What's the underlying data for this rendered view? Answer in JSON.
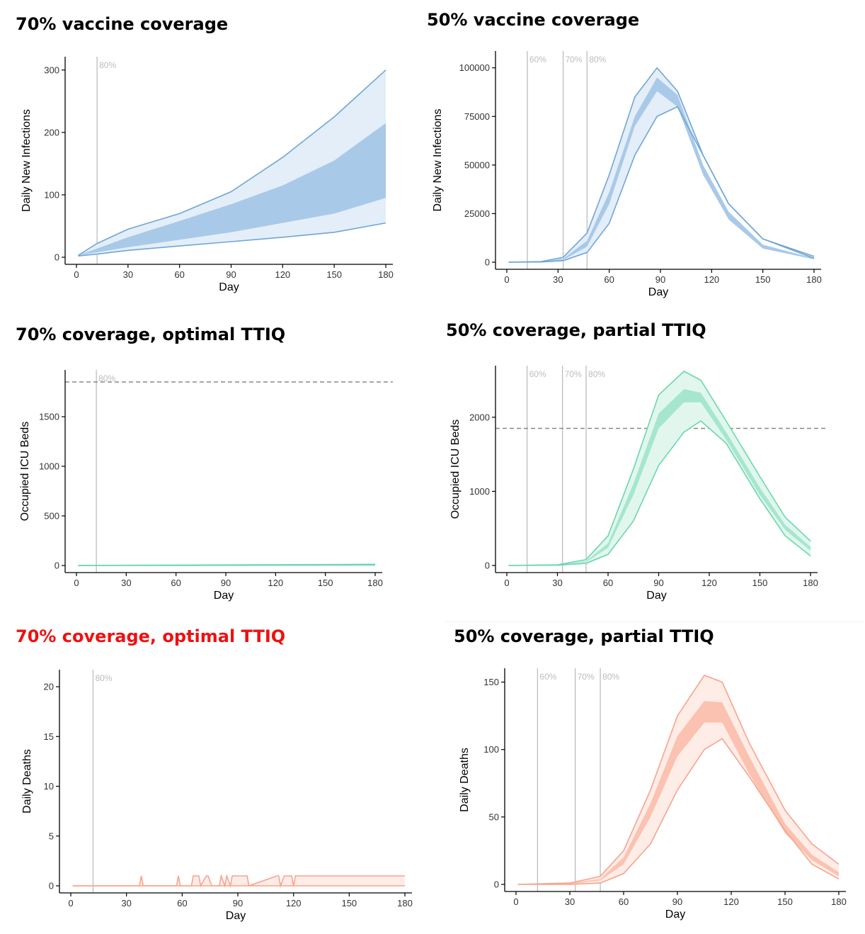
{
  "titles": [
    {
      "text": "70% vaccine coverage"
    },
    {
      "text": "50% vaccine coverage"
    },
    {
      "text": "70% coverage, optimal TTIQ"
    },
    {
      "text": "50% coverage, partial TTIQ"
    },
    {
      "text": "70% coverage, optimal TTIQ"
    },
    {
      "text": "50% coverage, partial TTIQ"
    }
  ],
  "colors": {
    "infections_line": "#6fa6d6",
    "infections_band": "#a9c9e8",
    "infections_outer": "#e4eef8",
    "icu_line": "#6ad6b0",
    "icu_band": "#a6e6cf",
    "icu_outer": "#e1f7ee",
    "deaths_line": "#f7a48e",
    "deaths_band": "#fbc2b1",
    "deaths_outer": "#feece6",
    "vline": "#bdbdbd",
    "threshold": "#888888",
    "axis": "#000000"
  },
  "chart_data": [
    {
      "type": "area",
      "title": "70% vaccine coverage",
      "xlabel": "Day",
      "ylabel": "Daily New Infections",
      "xlim": [
        0,
        180
      ],
      "ylim": [
        0,
        310
      ],
      "xticks": [
        0,
        30,
        60,
        90,
        120,
        150,
        180
      ],
      "yticks": [
        0,
        100,
        200,
        300
      ],
      "x": [
        1,
        12,
        30,
        60,
        90,
        120,
        150,
        180
      ],
      "series": [
        {
          "values": [
            3,
            22,
            45,
            70,
            105,
            160,
            225,
            300
          ]
        },
        {
          "values": [
            3,
            14,
            32,
            58,
            85,
            115,
            155,
            215
          ]
        },
        {
          "values": [
            3,
            8,
            16,
            28,
            40,
            55,
            70,
            95
          ]
        },
        {
          "values": [
            2,
            5,
            11,
            18,
            25,
            32,
            40,
            55
          ]
        }
      ],
      "vlines": [
        {
          "x": 12,
          "label": "80%"
        }
      ],
      "grid": false
    },
    {
      "type": "area",
      "title": "50% vaccine coverage",
      "xlabel": "Day",
      "ylabel": "Daily New Infections",
      "xlim": [
        0,
        180
      ],
      "ylim": [
        0,
        105000
      ],
      "xticks": [
        0,
        30,
        60,
        90,
        120,
        150,
        180
      ],
      "yticks": [
        0,
        25000,
        50000,
        75000,
        100000
      ],
      "x": [
        1,
        20,
        33,
        47,
        60,
        75,
        88,
        100,
        115,
        130,
        150,
        180
      ],
      "series": [
        {
          "values": [
            0,
            300,
            2500,
            15000,
            45000,
            85000,
            100000,
            88000,
            55000,
            30000,
            12000,
            3000
          ]
        },
        {
          "values": [
            0,
            200,
            1800,
            11000,
            36000,
            75000,
            95000,
            86000,
            50000,
            26000,
            9000,
            2000
          ]
        },
        {
          "values": [
            0,
            150,
            1200,
            8000,
            30000,
            70000,
            88000,
            80000,
            45000,
            22000,
            7000,
            1500
          ]
        },
        {
          "values": [
            0,
            100,
            800,
            5000,
            20000,
            55000,
            75000,
            80000,
            55000,
            30000,
            12000,
            2000
          ]
        }
      ],
      "vlines": [
        {
          "x": 12,
          "label": "60%"
        },
        {
          "x": 33,
          "label": "70%"
        },
        {
          "x": 47,
          "label": "80%"
        }
      ],
      "grid": false
    },
    {
      "type": "area",
      "title": "70% coverage, optimal TTIQ",
      "xlabel": "Day",
      "ylabel": "Occupied ICU Beds",
      "xlim": [
        0,
        180
      ],
      "ylim": [
        0,
        1900
      ],
      "xticks": [
        0,
        30,
        60,
        90,
        120,
        150,
        180
      ],
      "yticks": [
        0,
        500,
        1000,
        1500
      ],
      "x": [
        1,
        60,
        120,
        180
      ],
      "series": [
        {
          "values": [
            1,
            4,
            8,
            12
          ]
        },
        {
          "values": [
            0,
            3,
            6,
            9
          ]
        },
        {
          "values": [
            0,
            2,
            4,
            7
          ]
        },
        {
          "values": [
            0,
            1,
            3,
            5
          ]
        }
      ],
      "vlines": [
        {
          "x": 12,
          "label": "80%"
        }
      ],
      "threshold": 1850,
      "grid": false
    },
    {
      "type": "area",
      "title": "50% coverage, partial TTIQ",
      "xlabel": "Day",
      "ylabel": "Occupied ICU Beds",
      "xlim": [
        0,
        180
      ],
      "ylim": [
        0,
        2600
      ],
      "xticks": [
        0,
        30,
        60,
        90,
        120,
        150,
        180
      ],
      "yticks": [
        0,
        1000,
        2000
      ],
      "x": [
        1,
        30,
        47,
        60,
        75,
        90,
        105,
        115,
        130,
        150,
        165,
        180
      ],
      "series": [
        {
          "values": [
            0,
            10,
            80,
            400,
            1300,
            2300,
            2620,
            2500,
            1950,
            1200,
            650,
            330
          ]
        },
        {
          "values": [
            0,
            8,
            60,
            300,
            1100,
            2050,
            2380,
            2330,
            1800,
            1050,
            550,
            250
          ]
        },
        {
          "values": [
            0,
            6,
            45,
            240,
            950,
            1850,
            2200,
            2200,
            1700,
            950,
            480,
            200
          ]
        },
        {
          "values": [
            0,
            4,
            30,
            150,
            600,
            1350,
            1800,
            1950,
            1650,
            900,
            400,
            130
          ]
        }
      ],
      "vlines": [
        {
          "x": 12,
          "label": "60%"
        },
        {
          "x": 33,
          "label": "70%"
        },
        {
          "x": 47,
          "label": "80%"
        }
      ],
      "threshold": 1850,
      "grid": false
    },
    {
      "type": "area",
      "title": "70% coverage, optimal TTIQ",
      "xlabel": "Day",
      "ylabel": "Daily Deaths",
      "xlim": [
        0,
        180
      ],
      "ylim": [
        0,
        21
      ],
      "xticks": [
        0,
        30,
        60,
        90,
        120,
        150,
        180
      ],
      "yticks": [
        0,
        5,
        10,
        15,
        20
      ],
      "x": [
        1,
        37,
        38,
        39,
        57,
        58,
        59,
        65,
        66,
        69,
        70,
        73,
        74,
        76,
        80,
        81,
        83,
        84,
        86,
        87,
        95,
        96,
        111,
        112,
        113,
        115,
        119,
        120,
        121,
        122,
        180
      ],
      "series": [
        {
          "values": [
            0,
            0,
            1,
            0,
            0,
            1,
            0,
            0,
            1,
            1,
            0,
            1,
            1,
            0,
            0,
            1,
            0,
            1,
            0,
            1,
            1,
            0,
            1,
            1,
            0,
            1,
            1,
            0,
            1,
            1,
            1
          ]
        },
        {
          "values": [
            0,
            0,
            0,
            0,
            0,
            0,
            0,
            0,
            0,
            0,
            0,
            0,
            0,
            0,
            0,
            0,
            0,
            0,
            0,
            0,
            0,
            0,
            0,
            0,
            0,
            0,
            0,
            0,
            0,
            0,
            0
          ]
        }
      ],
      "vlines": [
        {
          "x": 12,
          "label": "80%"
        }
      ],
      "grid": false
    },
    {
      "type": "area",
      "title": "50% coverage, partial TTIQ",
      "xlabel": "Day",
      "ylabel": "Daily Deaths",
      "xlim": [
        0,
        180
      ],
      "ylim": [
        0,
        155
      ],
      "xticks": [
        0,
        30,
        60,
        90,
        120,
        150,
        180
      ],
      "yticks": [
        0,
        50,
        100,
        150
      ],
      "x": [
        1,
        30,
        47,
        60,
        75,
        90,
        105,
        115,
        130,
        150,
        165,
        180
      ],
      "series": [
        {
          "values": [
            0,
            1,
            6,
            25,
            70,
            125,
            155,
            150,
            105,
            55,
            30,
            15
          ]
        },
        {
          "values": [
            0,
            1,
            4,
            20,
            60,
            110,
            136,
            135,
            95,
            45,
            22,
            9
          ]
        },
        {
          "values": [
            0,
            0,
            3,
            15,
            50,
            95,
            120,
            120,
            82,
            38,
            18,
            6
          ]
        },
        {
          "values": [
            0,
            0,
            1,
            8,
            30,
            70,
            100,
            108,
            80,
            40,
            15,
            4
          ]
        }
      ],
      "vlines": [
        {
          "x": 12,
          "label": "60%"
        },
        {
          "x": 33,
          "label": "70%"
        },
        {
          "x": 47,
          "label": "80%"
        }
      ],
      "grid": false
    }
  ]
}
